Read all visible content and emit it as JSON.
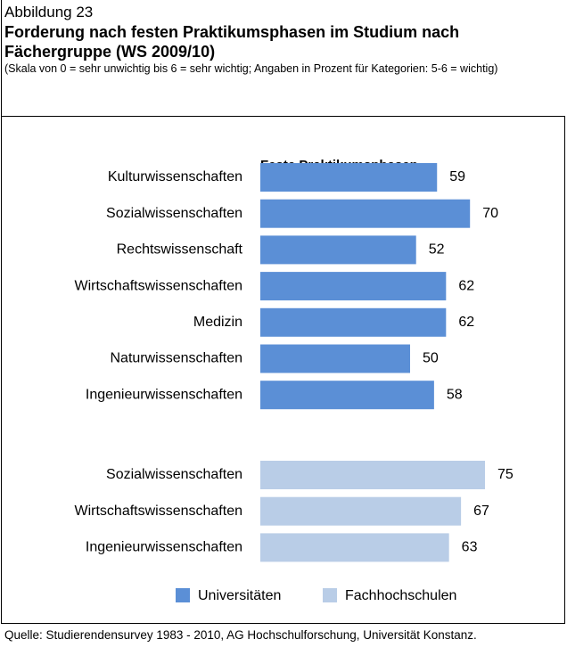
{
  "figure_label": "Abbildung 23",
  "title": "Forderung nach festen Praktikumsphasen im Studium nach Fächergruppe (WS 2009/10)",
  "note": "(Skala von 0 = sehr unwichtig bis 6 = sehr wichtig; Angaben in Prozent für Kategorien: 5-6 = wichtig)",
  "source": "Quelle: Studierendensurvey 1983 - 2010, AG Hochschulforschung, Universität Konstanz.",
  "chart_data": {
    "type": "bar",
    "orientation": "horizontal",
    "subtitle": "Feste Praktikumsphasen",
    "legend": "bottom",
    "series": [
      {
        "name": "Universitäten",
        "color": "#5b8fd6",
        "categories": [
          "Kulturwissenschaften",
          "Sozialwissenschaften",
          "Rechtswissenschaft",
          "Wirtschaftswissenschaften",
          "Medizin",
          "Naturwissenschaften",
          "Ingenieurwissenschaften"
        ],
        "values": [
          59,
          70,
          52,
          62,
          62,
          50,
          58
        ]
      },
      {
        "name": "Fachhochschulen",
        "color": "#b9cde7",
        "categories": [
          "Sozialwissenschaften",
          "Wirtschaftswissenschaften",
          "Ingenieurwissenschaften"
        ],
        "values": [
          75,
          67,
          63
        ]
      }
    ]
  }
}
